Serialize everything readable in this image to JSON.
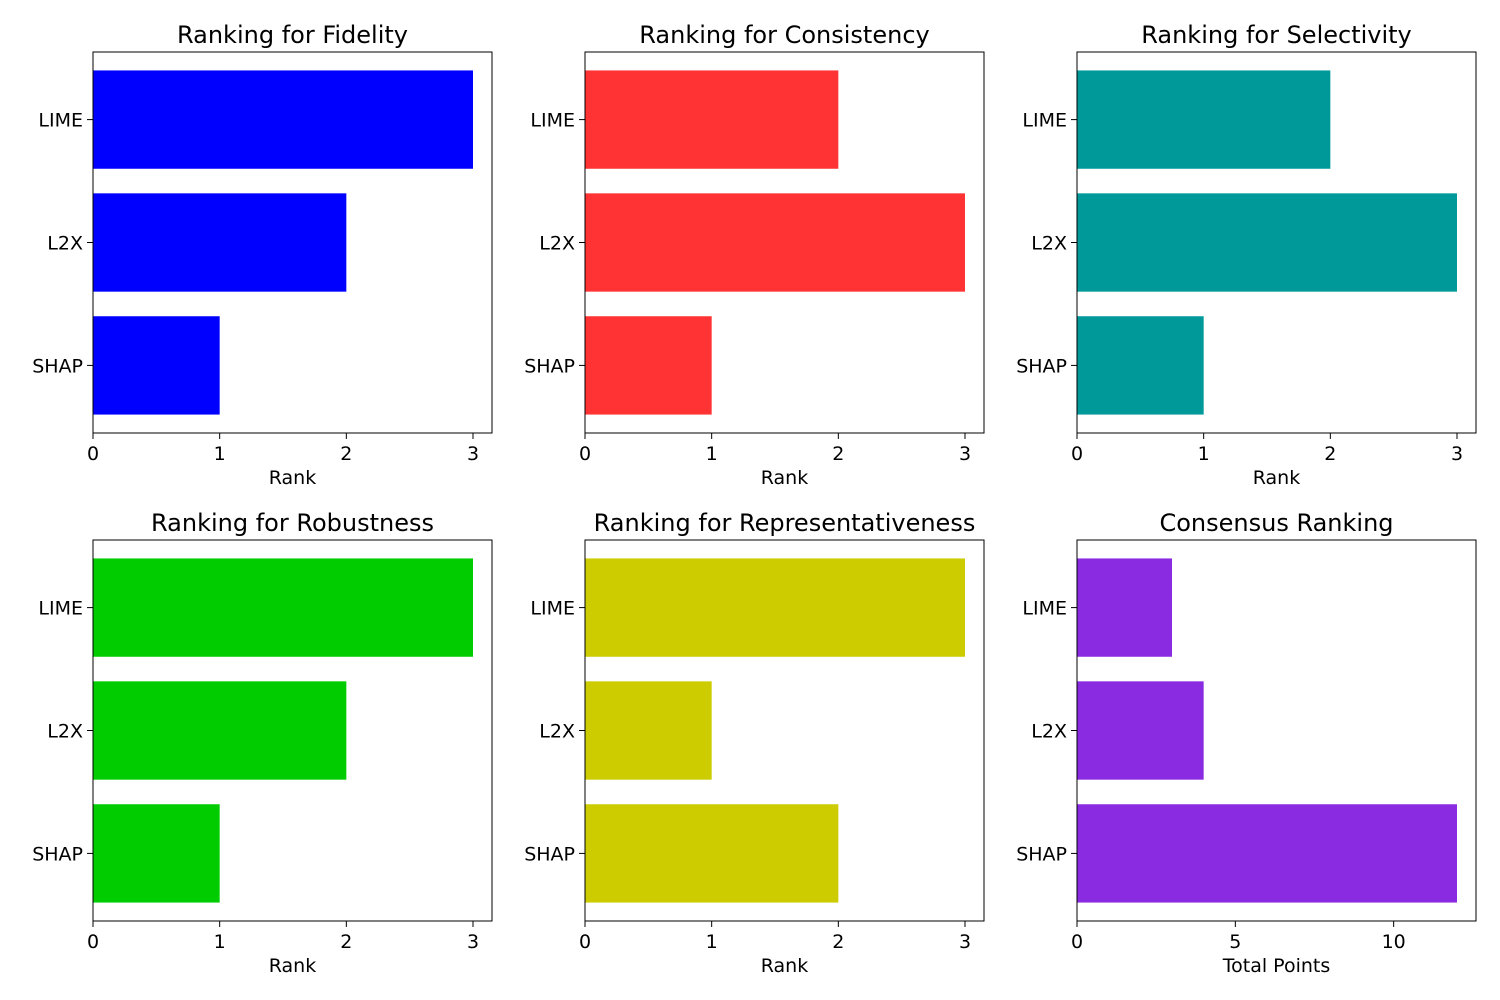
{
  "chart_data": [
    {
      "type": "bar",
      "orientation": "horizontal",
      "title": "Ranking for Fidelity",
      "xlabel": "Rank",
      "ylabel": "",
      "categories": [
        "LIME",
        "L2X",
        "SHAP"
      ],
      "values": [
        3,
        2,
        1
      ],
      "xlim": [
        0,
        3.15
      ],
      "xticks": [
        0,
        1,
        2,
        3
      ],
      "color": "#0000ff",
      "grid": false
    },
    {
      "type": "bar",
      "orientation": "horizontal",
      "title": "Ranking for Consistency",
      "xlabel": "Rank",
      "ylabel": "",
      "categories": [
        "LIME",
        "L2X",
        "SHAP"
      ],
      "values": [
        2,
        3,
        1
      ],
      "xlim": [
        0,
        3.15
      ],
      "xticks": [
        0,
        1,
        2,
        3
      ],
      "color": "#ff3333",
      "grid": false
    },
    {
      "type": "bar",
      "orientation": "horizontal",
      "title": "Ranking for Selectivity",
      "xlabel": "Rank",
      "ylabel": "",
      "categories": [
        "LIME",
        "L2X",
        "SHAP"
      ],
      "values": [
        2,
        3,
        1
      ],
      "xlim": [
        0,
        3.15
      ],
      "xticks": [
        0,
        1,
        2,
        3
      ],
      "color": "#009999",
      "grid": false
    },
    {
      "type": "bar",
      "orientation": "horizontal",
      "title": "Ranking for Robustness",
      "xlabel": "Rank",
      "ylabel": "",
      "categories": [
        "LIME",
        "L2X",
        "SHAP"
      ],
      "values": [
        3,
        2,
        1
      ],
      "xlim": [
        0,
        3.15
      ],
      "xticks": [
        0,
        1,
        2,
        3
      ],
      "color": "#00cc00",
      "grid": false
    },
    {
      "type": "bar",
      "orientation": "horizontal",
      "title": "Ranking for Representativeness",
      "xlabel": "Rank",
      "ylabel": "",
      "categories": [
        "LIME",
        "L2X",
        "SHAP"
      ],
      "values": [
        3,
        1,
        2
      ],
      "xlim": [
        0,
        3.15
      ],
      "xticks": [
        0,
        1,
        2,
        3
      ],
      "color": "#cccc00",
      "grid": false
    },
    {
      "type": "bar",
      "orientation": "horizontal",
      "title": "Consensus Ranking",
      "xlabel": "Total Points",
      "ylabel": "",
      "categories": [
        "LIME",
        "L2X",
        "SHAP"
      ],
      "values": [
        3,
        4,
        12
      ],
      "xlim": [
        0,
        12.6
      ],
      "xticks": [
        0,
        5,
        10
      ],
      "color": "#8a2be2",
      "grid": false
    }
  ]
}
